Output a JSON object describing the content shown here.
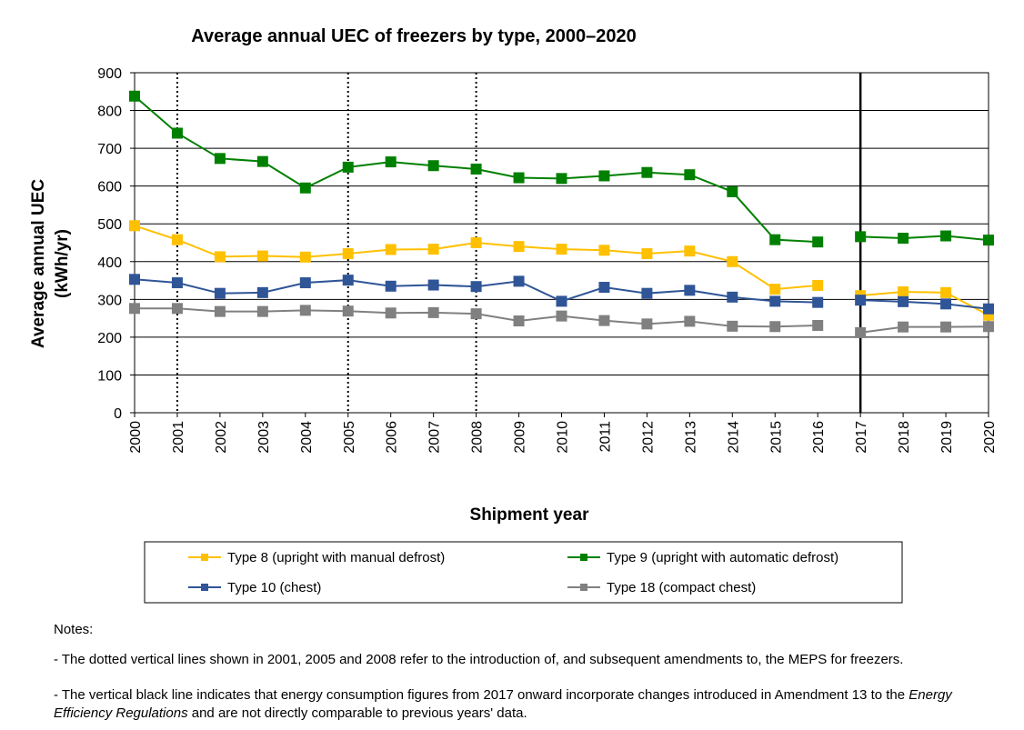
{
  "chart_data": {
    "type": "line",
    "title": "Average annual UEC of freezers by type, 2000–2020",
    "xlabel": "Shipment year",
    "ylabel_line1": "Average annual UEC",
    "ylabel_line2": "(kWh/yr)",
    "ylim": [
      0,
      900
    ],
    "yticks": [
      "0",
      "100",
      "200",
      "300",
      "400",
      "500",
      "600",
      "700",
      "800",
      "900"
    ],
    "categories": [
      "2000",
      "2001",
      "2002",
      "2003",
      "2004",
      "2005",
      "2006",
      "2007",
      "2008",
      "2009",
      "2010",
      "2011",
      "2012",
      "2013",
      "2014",
      "2015",
      "2016",
      "2017",
      "2018",
      "2019",
      "2020"
    ],
    "grid": "horizontal",
    "legend_position": "bottom",
    "dotted_vlines_at": [
      "2001",
      "2005",
      "2008"
    ],
    "solid_vline_at": "2017",
    "break_after": "2016",
    "series": [
      {
        "name": "Type 8 (upright with manual defrost)",
        "color": "#FFC000",
        "values": [
          495,
          458,
          413,
          415,
          412,
          421,
          432,
          433,
          450,
          440,
          433,
          430,
          421,
          428,
          400,
          327,
          337,
          310,
          320,
          318,
          258
        ]
      },
      {
        "name": "Type 9 (upright with automatic defrost)",
        "color": "#008000",
        "values": [
          838,
          740,
          673,
          665,
          595,
          650,
          664,
          654,
          645,
          622,
          620,
          627,
          636,
          630,
          585,
          458,
          452,
          466,
          462,
          468,
          457
        ]
      },
      {
        "name": "Type 10 (chest)",
        "color": "#2F5597",
        "values": [
          353,
          344,
          316,
          318,
          344,
          351,
          335,
          338,
          334,
          348,
          295,
          332,
          316,
          324,
          306,
          295,
          292,
          298,
          294,
          288,
          275
        ]
      },
      {
        "name": "Type 18 (compact chest)",
        "color": "#808080",
        "values": [
          276,
          276,
          268,
          268,
          271,
          269,
          264,
          265,
          262,
          243,
          256,
          244,
          235,
          242,
          229,
          228,
          231,
          212,
          227,
          227,
          228
        ]
      }
    ]
  },
  "notes": {
    "heading": "Notes:",
    "line1": "- The dotted vertical lines shown in 2001, 2005 and 2008 refer to the introduction of, and subsequent amendments to, the MEPS for freezers.",
    "line2_pre": "- The vertical black line indicates that energy consumption figures from 2017 onward incorporate changes introduced in Amendment 13 to the ",
    "line2_italic": "Energy Efficiency Regulations",
    "line2_post": " and are not directly comparable to previous years' data."
  }
}
